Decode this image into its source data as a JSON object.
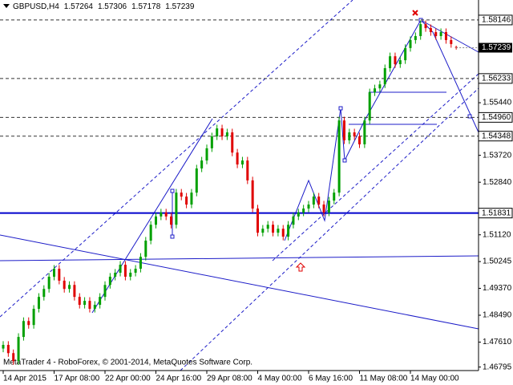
{
  "chart_data": {
    "type": "candlestick",
    "symbol": "GBPUSD,H4",
    "footer": "MetaTrader 4 - RoboForex, © 2001-2014, MetaQuotes Software Corp.",
    "categories": [
      "14 Apr 2015",
      null,
      null,
      null,
      null,
      null,
      null,
      null,
      null,
      null,
      "17 Apr 08:00",
      null,
      null,
      null,
      null,
      null,
      null,
      null,
      null,
      null,
      "22 Apr 00:00",
      null,
      null,
      null,
      null,
      null,
      null,
      null,
      null,
      null,
      "24 Apr 16:00",
      null,
      null,
      null,
      null,
      null,
      null,
      null,
      null,
      null,
      "29 Apr 08:00",
      null,
      null,
      null,
      null,
      null,
      null,
      null,
      null,
      null,
      "4 May 00:00",
      null,
      null,
      null,
      null,
      null,
      null,
      null,
      null,
      null,
      "6 May 16:00",
      null,
      null,
      null,
      null,
      null,
      null,
      null,
      null,
      null,
      "11 May 08:00",
      null,
      null,
      null,
      null,
      null,
      null,
      null,
      null,
      null,
      "14 May 00:00",
      null,
      null,
      null,
      null,
      null,
      null,
      null,
      null,
      null
    ],
    "open": [
      1.474,
      1.4752,
      1.4725,
      1.4699,
      1.4778,
      1.483,
      1.4817,
      1.487,
      1.4909,
      1.4935,
      1.4975,
      1.5001,
      1.4962,
      1.4935,
      1.4948,
      1.4909,
      1.4883,
      1.4896,
      1.487,
      1.4883,
      1.4909,
      1.4948,
      1.4975,
      1.4988,
      1.5014,
      1.4975,
      1.4988,
      1.5001,
      1.504,
      1.5093,
      1.5145,
      1.5172,
      1.5185,
      1.5172,
      1.5145,
      1.525,
      1.5237,
      1.5211,
      1.525,
      1.5329,
      1.5355,
      1.5395,
      1.5434,
      1.546,
      1.5434,
      1.5447,
      1.5381,
      1.5342,
      1.5355,
      1.529,
      1.5198,
      1.5119,
      1.5132,
      1.5145,
      1.5119,
      1.5132,
      1.5106,
      1.5145,
      1.5172,
      1.5185,
      1.5198,
      1.5211,
      1.5237,
      1.5211,
      1.5185,
      1.5224,
      1.525,
      1.5486,
      1.5421,
      1.5447,
      1.5434,
      1.5408,
      1.5486,
      1.5578,
      1.5591,
      1.5604,
      1.5657,
      1.5696,
      1.567,
      1.5683,
      1.5723,
      1.5749,
      1.5762,
      1.5801,
      1.5788,
      1.5775,
      1.5762,
      1.5775,
      1.5749,
      1.57264
    ],
    "high": [
      1.4764,
      1.4764,
      1.4737,
      1.479,
      1.4842,
      1.4842,
      1.4882,
      1.4921,
      1.4947,
      1.4987,
      1.5013,
      1.5013,
      1.4974,
      1.496,
      1.496,
      1.4921,
      1.4908,
      1.4908,
      1.4895,
      1.4921,
      1.496,
      1.4987,
      1.5,
      1.5026,
      1.5026,
      1.5,
      1.5013,
      1.5052,
      1.5105,
      1.5157,
      1.5184,
      1.5197,
      1.5197,
      1.5184,
      1.5262,
      1.5262,
      1.5249,
      1.5262,
      1.5341,
      1.5367,
      1.5407,
      1.5446,
      1.5472,
      1.5472,
      1.5459,
      1.5459,
      1.5393,
      1.5367,
      1.5367,
      1.5302,
      1.521,
      1.5144,
      1.5157,
      1.5157,
      1.5144,
      1.5144,
      1.5157,
      1.5184,
      1.5197,
      1.521,
      1.5223,
      1.5249,
      1.5249,
      1.5223,
      1.5236,
      1.5262,
      1.5498,
      1.5498,
      1.5459,
      1.5459,
      1.5446,
      1.5498,
      1.559,
      1.5603,
      1.5616,
      1.5669,
      1.5708,
      1.5708,
      1.5695,
      1.5735,
      1.5761,
      1.5774,
      1.5813,
      1.5813,
      1.58,
      1.5787,
      1.5787,
      1.5787,
      1.5761,
      1.57306
    ],
    "low": [
      1.4728,
      1.4713,
      1.4687,
      1.4687,
      1.4766,
      1.4805,
      1.4805,
      1.4858,
      1.4897,
      1.4923,
      1.4963,
      1.495,
      1.4923,
      1.4923,
      1.4897,
      1.4871,
      1.4871,
      1.4858,
      1.4858,
      1.4871,
      1.4897,
      1.4936,
      1.4963,
      1.4976,
      1.4963,
      1.4963,
      1.4976,
      1.4989,
      1.5028,
      1.5081,
      1.5133,
      1.516,
      1.516,
      1.5133,
      1.5133,
      1.5225,
      1.5199,
      1.5199,
      1.5238,
      1.5317,
      1.5343,
      1.5383,
      1.5422,
      1.5422,
      1.5422,
      1.5369,
      1.533,
      1.533,
      1.5278,
      1.5186,
      1.5107,
      1.5107,
      1.512,
      1.5107,
      1.5107,
      1.5094,
      1.5094,
      1.5133,
      1.516,
      1.5173,
      1.5186,
      1.5199,
      1.5199,
      1.5173,
      1.5173,
      1.5212,
      1.5238,
      1.5409,
      1.5409,
      1.5422,
      1.5396,
      1.5396,
      1.5474,
      1.5566,
      1.5579,
      1.5592,
      1.5645,
      1.5658,
      1.5658,
      1.5671,
      1.5711,
      1.5737,
      1.575,
      1.5776,
      1.5763,
      1.575,
      1.575,
      1.5737,
      1.5724,
      1.57178
    ],
    "close": [
      1.4752,
      1.4725,
      1.4699,
      1.4778,
      1.483,
      1.4817,
      1.487,
      1.4909,
      1.4935,
      1.4975,
      1.5001,
      1.4962,
      1.4935,
      1.4948,
      1.4909,
      1.4883,
      1.4896,
      1.487,
      1.4883,
      1.4909,
      1.4948,
      1.4975,
      1.4988,
      1.5014,
      1.4975,
      1.4988,
      1.5001,
      1.504,
      1.5093,
      1.5145,
      1.5172,
      1.5185,
      1.5172,
      1.5145,
      1.525,
      1.5237,
      1.5211,
      1.525,
      1.5329,
      1.5355,
      1.5395,
      1.5434,
      1.546,
      1.5434,
      1.5447,
      1.5381,
      1.5342,
      1.5355,
      1.529,
      1.5198,
      1.5119,
      1.5132,
      1.5145,
      1.5119,
      1.5132,
      1.5106,
      1.5145,
      1.5172,
      1.5185,
      1.5198,
      1.5211,
      1.5237,
      1.5211,
      1.5185,
      1.5224,
      1.525,
      1.5486,
      1.5421,
      1.5447,
      1.5434,
      1.5408,
      1.5486,
      1.5578,
      1.5591,
      1.5604,
      1.5657,
      1.5696,
      1.567,
      1.5683,
      1.5723,
      1.5749,
      1.5762,
      1.5801,
      1.5788,
      1.5775,
      1.5762,
      1.5775,
      1.5749,
      1.5736,
      1.57239
    ],
    "up_color": "#00a000",
    "down_color": "#e00000",
    "ylim": [
      1.4668,
      1.588
    ],
    "yticks": [
      {
        "value": 1.5544,
        "label": "1.55440"
      },
      {
        "value": 1.5372,
        "label": "1.53720"
      },
      {
        "value": 1.5284,
        "label": "1.52840"
      },
      {
        "value": 1.5112,
        "label": "1.51120"
      },
      1.50245,
      {
        "value": 1.4937,
        "label": "1.49370"
      },
      {
        "value": 1.4849,
        "label": "1.48490"
      },
      {
        "value": 1.4761,
        "label": "1.47610"
      },
      1.46795
    ],
    "levels": [
      1.58146,
      1.56233,
      {
        "value": 1.5496,
        "label": "1.54960"
      },
      1.54348
    ],
    "support": 1.51831,
    "level_color": "#333333",
    "support_color": "#0000cc"
  }
}
